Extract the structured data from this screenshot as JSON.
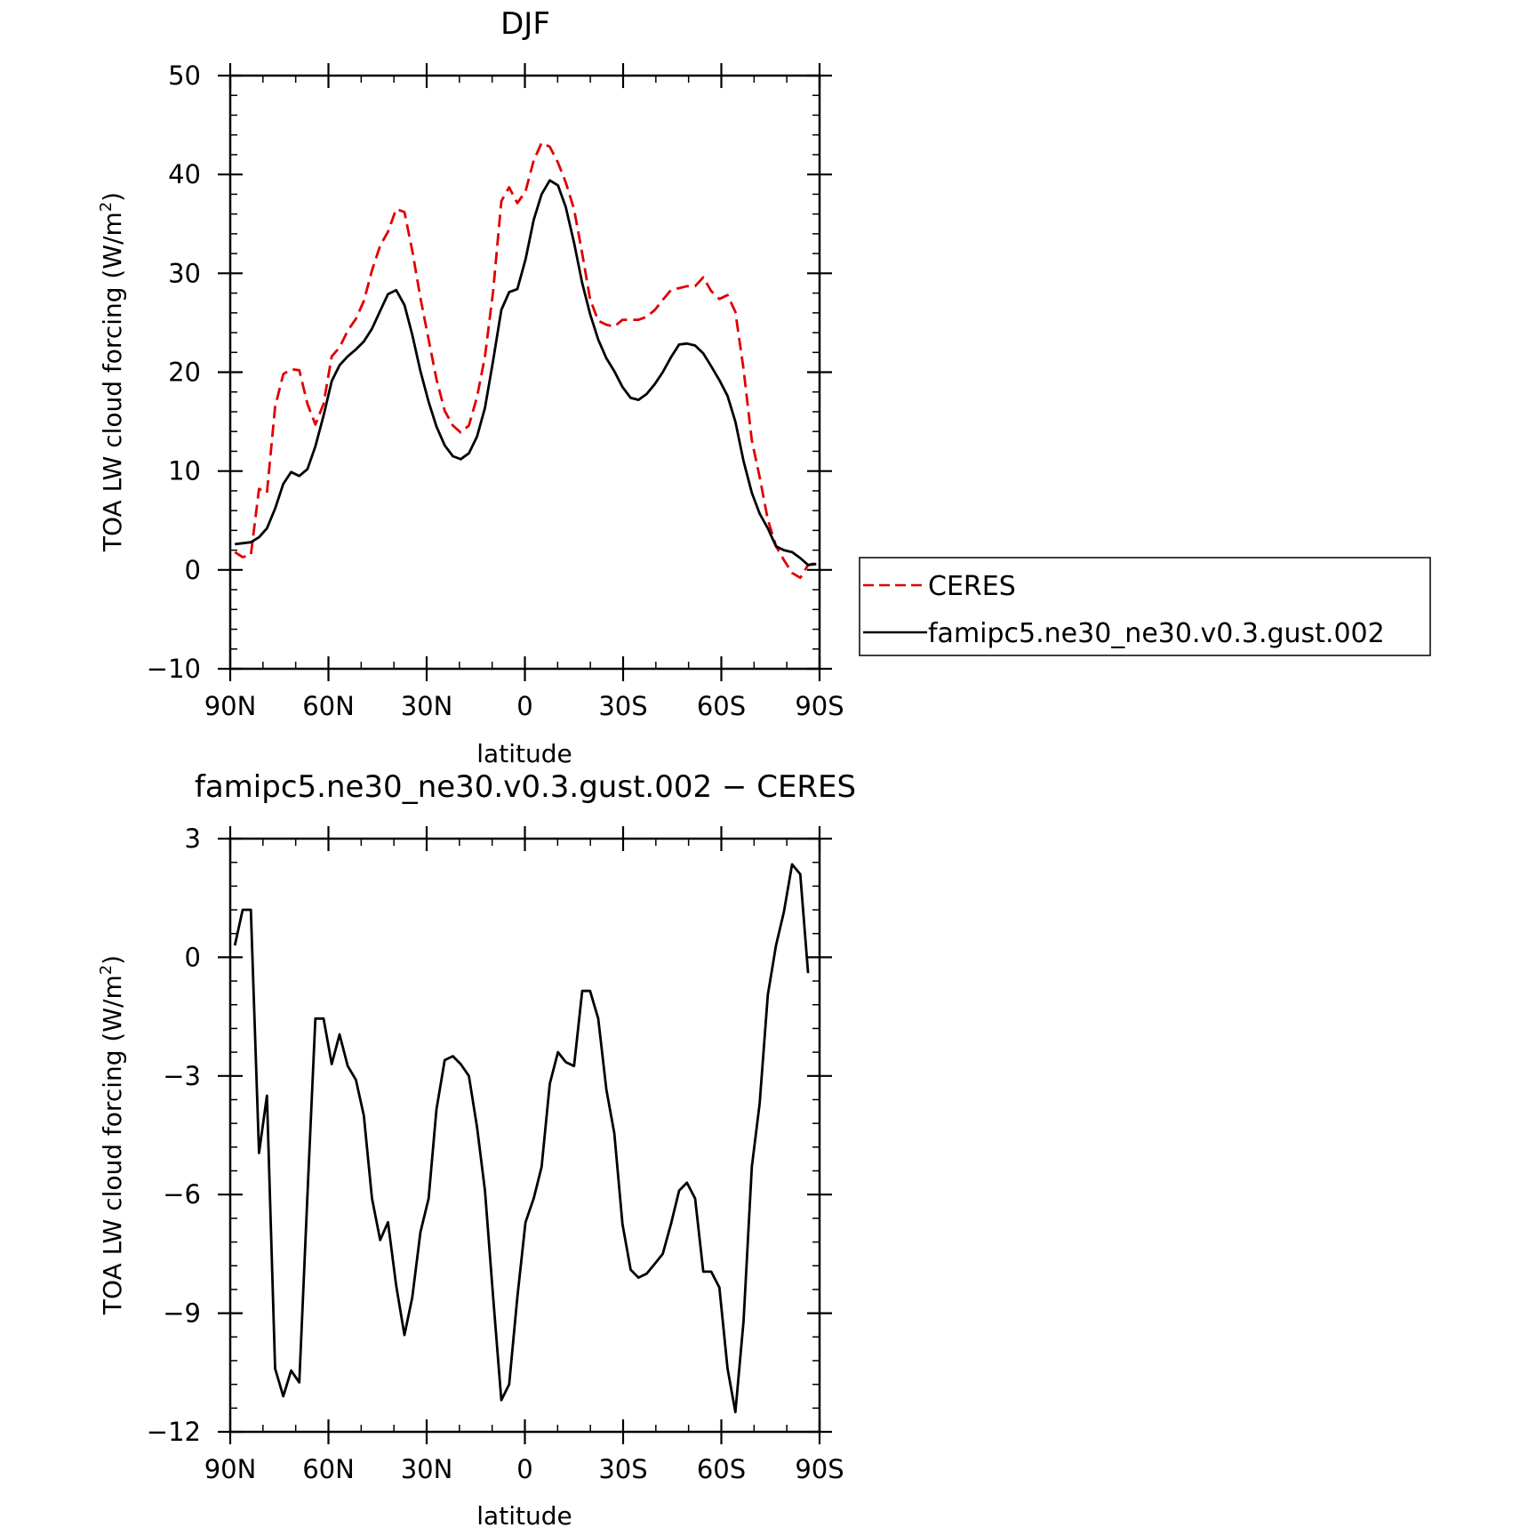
{
  "chart_data": [
    {
      "type": "line",
      "title": "DJF",
      "xlabel": "latitude",
      "ylabel": "TOA LW cloud forcing (W/m²)",
      "ylabel_main": "TOA LW cloud forcing (W/m",
      "ylabel_sup": "2",
      "ylabel_end": ")",
      "xlim": [
        -90,
        90
      ],
      "ylim": [
        -10,
        50
      ],
      "x_ticks": [
        -90,
        -60,
        -30,
        0,
        30,
        60,
        90
      ],
      "x_tick_labels": [
        "90N",
        "60N",
        "30N",
        "0",
        "30S",
        "60S",
        "90S"
      ],
      "y_ticks": [
        -10,
        0,
        10,
        20,
        30,
        40,
        50
      ],
      "y_tick_labels": [
        "−10",
        "0",
        "10",
        "20",
        "30",
        "40",
        "50"
      ],
      "legend": "right",
      "grid": false,
      "series": [
        {
          "name": "CERES",
          "color": "#e00000",
          "dash": "dashed",
          "points": [
            [
              -88.6,
              1.8
            ],
            [
              -86.2,
              1.3
            ],
            [
              -83.7,
              1.5
            ],
            [
              -81.2,
              8.2
            ],
            [
              -78.8,
              7.8
            ],
            [
              -76.3,
              16.5
            ],
            [
              -73.8,
              19.8
            ],
            [
              -71.4,
              20.3
            ],
            [
              -68.9,
              20.2
            ],
            [
              -66.4,
              16.8
            ],
            [
              -64.0,
              14.7
            ],
            [
              -61.5,
              16.8
            ],
            [
              -59.0,
              21.6
            ],
            [
              -56.6,
              22.5
            ],
            [
              -54.1,
              24.2
            ],
            [
              -51.6,
              25.4
            ],
            [
              -49.2,
              27.2
            ],
            [
              -46.7,
              30.3
            ],
            [
              -44.2,
              32.8
            ],
            [
              -41.8,
              34.2
            ],
            [
              -39.3,
              36.5
            ],
            [
              -36.8,
              36.2
            ],
            [
              -34.4,
              32.3
            ],
            [
              -31.9,
              27.5
            ],
            [
              -29.4,
              23.3
            ],
            [
              -27.0,
              19.3
            ],
            [
              -24.5,
              16.1
            ],
            [
              -22.0,
              14.6
            ],
            [
              -19.6,
              13.9
            ],
            [
              -17.1,
              14.6
            ],
            [
              -14.6,
              17.5
            ],
            [
              -12.2,
              21.6
            ],
            [
              -9.7,
              28.2
            ],
            [
              -7.2,
              37.3
            ],
            [
              -4.8,
              38.7
            ],
            [
              -2.3,
              37.1
            ],
            [
              0.2,
              38.3
            ],
            [
              2.7,
              41.4
            ],
            [
              5.1,
              43.2
            ],
            [
              7.6,
              42.8
            ],
            [
              10.1,
              41.2
            ],
            [
              12.5,
              39.2
            ],
            [
              15.0,
              36.5
            ],
            [
              17.5,
              32.0
            ],
            [
              19.9,
              27.4
            ],
            [
              22.4,
              25.2
            ],
            [
              24.9,
              24.8
            ],
            [
              27.3,
              24.6
            ],
            [
              29.8,
              25.3
            ],
            [
              32.3,
              25.3
            ],
            [
              34.7,
              25.3
            ],
            [
              37.2,
              25.6
            ],
            [
              39.7,
              26.3
            ],
            [
              42.1,
              27.3
            ],
            [
              44.6,
              28.3
            ],
            [
              47.1,
              28.5
            ],
            [
              49.5,
              28.7
            ],
            [
              52.0,
              28.7
            ],
            [
              54.5,
              29.6
            ],
            [
              56.9,
              28.2
            ],
            [
              59.4,
              27.4
            ],
            [
              61.9,
              27.8
            ],
            [
              64.3,
              26.1
            ],
            [
              66.8,
              20.3
            ],
            [
              69.3,
              13.1
            ],
            [
              71.7,
              9.4
            ],
            [
              74.2,
              5.1
            ],
            [
              76.7,
              2.4
            ],
            [
              79.1,
              1.0
            ],
            [
              81.6,
              -0.3
            ],
            [
              84.1,
              -0.8
            ],
            [
              86.5,
              0.5
            ],
            [
              89.0,
              0.7
            ]
          ]
        },
        {
          "name": "famipc5.ne30_ne30.v0.3.gust.002",
          "color": "#000000",
          "dash": "solid",
          "points": [
            [
              -88.6,
              2.6
            ],
            [
              -86.2,
              2.7
            ],
            [
              -83.7,
              2.8
            ],
            [
              -81.2,
              3.3
            ],
            [
              -78.8,
              4.2
            ],
            [
              -76.3,
              6.2
            ],
            [
              -73.8,
              8.7
            ],
            [
              -71.4,
              9.9
            ],
            [
              -68.9,
              9.5
            ],
            [
              -66.4,
              10.2
            ],
            [
              -64.0,
              12.5
            ],
            [
              -61.5,
              15.6
            ],
            [
              -59.0,
              19.1
            ],
            [
              -56.6,
              20.7
            ],
            [
              -54.1,
              21.6
            ],
            [
              -51.6,
              22.3
            ],
            [
              -49.2,
              23.1
            ],
            [
              -46.7,
              24.4
            ],
            [
              -44.2,
              26.2
            ],
            [
              -41.8,
              27.9
            ],
            [
              -39.3,
              28.3
            ],
            [
              -36.8,
              26.8
            ],
            [
              -34.4,
              23.8
            ],
            [
              -31.9,
              20.1
            ],
            [
              -29.4,
              17.0
            ],
            [
              -27.0,
              14.5
            ],
            [
              -24.5,
              12.6
            ],
            [
              -22.0,
              11.5
            ],
            [
              -19.6,
              11.2
            ],
            [
              -17.1,
              11.8
            ],
            [
              -14.6,
              13.5
            ],
            [
              -12.2,
              16.4
            ],
            [
              -9.7,
              21.2
            ],
            [
              -7.2,
              26.3
            ],
            [
              -4.8,
              28.1
            ],
            [
              -2.3,
              28.4
            ],
            [
              0.2,
              31.4
            ],
            [
              2.7,
              35.4
            ],
            [
              5.1,
              38.0
            ],
            [
              7.6,
              39.4
            ],
            [
              10.1,
              38.9
            ],
            [
              12.5,
              36.7
            ],
            [
              15.0,
              33.1
            ],
            [
              17.5,
              29.0
            ],
            [
              19.9,
              25.9
            ],
            [
              22.4,
              23.3
            ],
            [
              24.9,
              21.4
            ],
            [
              27.3,
              20.1
            ],
            [
              29.8,
              18.5
            ],
            [
              32.3,
              17.4
            ],
            [
              34.7,
              17.2
            ],
            [
              37.2,
              17.8
            ],
            [
              39.7,
              18.8
            ],
            [
              42.1,
              20.0
            ],
            [
              44.6,
              21.5
            ],
            [
              47.1,
              22.8
            ],
            [
              49.5,
              22.9
            ],
            [
              52.0,
              22.7
            ],
            [
              54.5,
              21.9
            ],
            [
              56.9,
              20.6
            ],
            [
              59.4,
              19.2
            ],
            [
              61.9,
              17.6
            ],
            [
              64.3,
              15.0
            ],
            [
              66.8,
              11.0
            ],
            [
              69.3,
              7.8
            ],
            [
              71.7,
              5.7
            ],
            [
              74.2,
              4.2
            ],
            [
              76.7,
              2.4
            ],
            [
              79.1,
              2.0
            ],
            [
              81.6,
              1.8
            ],
            [
              84.1,
              1.2
            ],
            [
              86.5,
              0.5
            ],
            [
              89.0,
              0.6
            ]
          ]
        }
      ]
    },
    {
      "type": "line",
      "title": "famipc5.ne30_ne30.v0.3.gust.002 − CERES",
      "xlabel": "latitude",
      "ylabel": "TOA LW cloud forcing (W/m²)",
      "ylabel_main": "TOA LW cloud forcing (W/m",
      "ylabel_sup": "2",
      "ylabel_end": ")",
      "xlim": [
        -90,
        90
      ],
      "ylim": [
        -12,
        3
      ],
      "x_ticks": [
        -90,
        -60,
        -30,
        0,
        30,
        60,
        90
      ],
      "x_tick_labels": [
        "90N",
        "60N",
        "30N",
        "0",
        "30S",
        "60S",
        "90S"
      ],
      "y_ticks": [
        -12,
        -9,
        -6,
        -3,
        0,
        3
      ],
      "y_tick_labels": [
        "−12",
        "−9",
        "−6",
        "−3",
        "0",
        "3"
      ],
      "grid": false,
      "series": [
        {
          "color": "#000000",
          "dash": "solid",
          "points": [
            [
              -88.6,
              0.3
            ],
            [
              -86.2,
              1.2
            ],
            [
              -83.7,
              1.2
            ],
            [
              -81.2,
              -4.95
            ],
            [
              -78.8,
              -3.5
            ],
            [
              -76.3,
              -10.4
            ],
            [
              -73.8,
              -11.1
            ],
            [
              -71.4,
              -10.45
            ],
            [
              -68.9,
              -10.75
            ],
            [
              -66.4,
              -6.0
            ],
            [
              -64.0,
              -1.55
            ],
            [
              -61.5,
              -1.55
            ],
            [
              -59.0,
              -2.7
            ],
            [
              -56.6,
              -1.95
            ],
            [
              -54.1,
              -2.75
            ],
            [
              -51.6,
              -3.1
            ],
            [
              -49.2,
              -4.0
            ],
            [
              -46.7,
              -6.1
            ],
            [
              -44.2,
              -7.15
            ],
            [
              -41.8,
              -6.7
            ],
            [
              -39.3,
              -8.3
            ],
            [
              -36.8,
              -9.55
            ],
            [
              -34.4,
              -8.6
            ],
            [
              -31.9,
              -6.95
            ],
            [
              -29.4,
              -6.1
            ],
            [
              -27.0,
              -3.85
            ],
            [
              -24.5,
              -2.6
            ],
            [
              -22.0,
              -2.5
            ],
            [
              -19.6,
              -2.7
            ],
            [
              -17.1,
              -3.0
            ],
            [
              -14.6,
              -4.3
            ],
            [
              -12.2,
              -5.9
            ],
            [
              -9.7,
              -8.6
            ],
            [
              -7.2,
              -11.2
            ],
            [
              -4.8,
              -10.8
            ],
            [
              -2.3,
              -8.6
            ],
            [
              0.2,
              -6.7
            ],
            [
              2.7,
              -6.1
            ],
            [
              5.1,
              -5.3
            ],
            [
              7.6,
              -3.2
            ],
            [
              10.1,
              -2.4
            ],
            [
              12.5,
              -2.65
            ],
            [
              15.0,
              -2.75
            ],
            [
              17.5,
              -0.85
            ],
            [
              19.9,
              -0.85
            ],
            [
              22.4,
              -1.55
            ],
            [
              24.9,
              -3.35
            ],
            [
              27.3,
              -4.45
            ],
            [
              29.8,
              -6.75
            ],
            [
              32.3,
              -7.9
            ],
            [
              34.7,
              -8.1
            ],
            [
              37.2,
              -8.0
            ],
            [
              39.7,
              -7.75
            ],
            [
              42.1,
              -7.5
            ],
            [
              44.6,
              -6.75
            ],
            [
              47.1,
              -5.9
            ],
            [
              49.5,
              -5.7
            ],
            [
              52.0,
              -6.1
            ],
            [
              54.5,
              -7.95
            ],
            [
              56.9,
              -7.95
            ],
            [
              59.4,
              -8.35
            ],
            [
              61.9,
              -10.4
            ],
            [
              64.3,
              -11.5
            ],
            [
              66.8,
              -9.2
            ],
            [
              69.3,
              -5.3
            ],
            [
              71.7,
              -3.7
            ],
            [
              74.2,
              -0.95
            ],
            [
              76.7,
              0.3
            ],
            [
              79.1,
              1.15
            ],
            [
              81.6,
              2.35
            ],
            [
              84.1,
              2.1
            ],
            [
              86.5,
              -0.4
            ]
          ]
        }
      ]
    }
  ]
}
